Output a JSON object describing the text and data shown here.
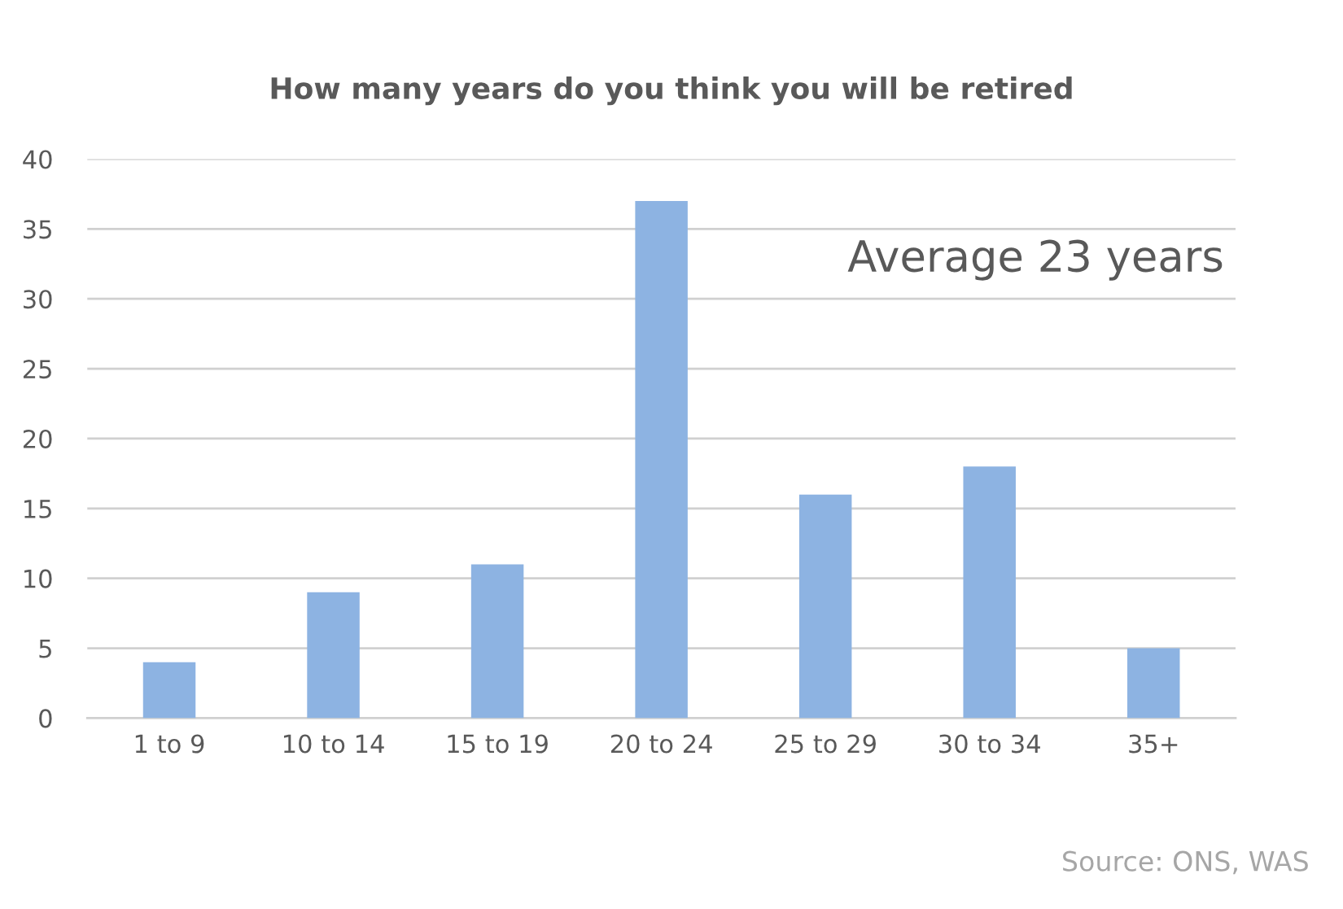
{
  "chart_data": {
    "type": "bar",
    "title": "How many years do you think you will be retired",
    "categories": [
      "1 to 9",
      "10 to 14",
      "15 to 19",
      "20 to 24",
      "25 to 29",
      "30 to 34",
      "35+"
    ],
    "values": [
      4,
      9,
      11,
      37,
      16,
      18,
      5
    ],
    "color": "#8db3e2",
    "ylim": [
      0,
      40
    ],
    "yticks": [
      0,
      5,
      10,
      15,
      20,
      25,
      30,
      35,
      40
    ],
    "grid": "y",
    "annotations": [
      "Average 23 years",
      "Source: ONS, WAS"
    ]
  }
}
